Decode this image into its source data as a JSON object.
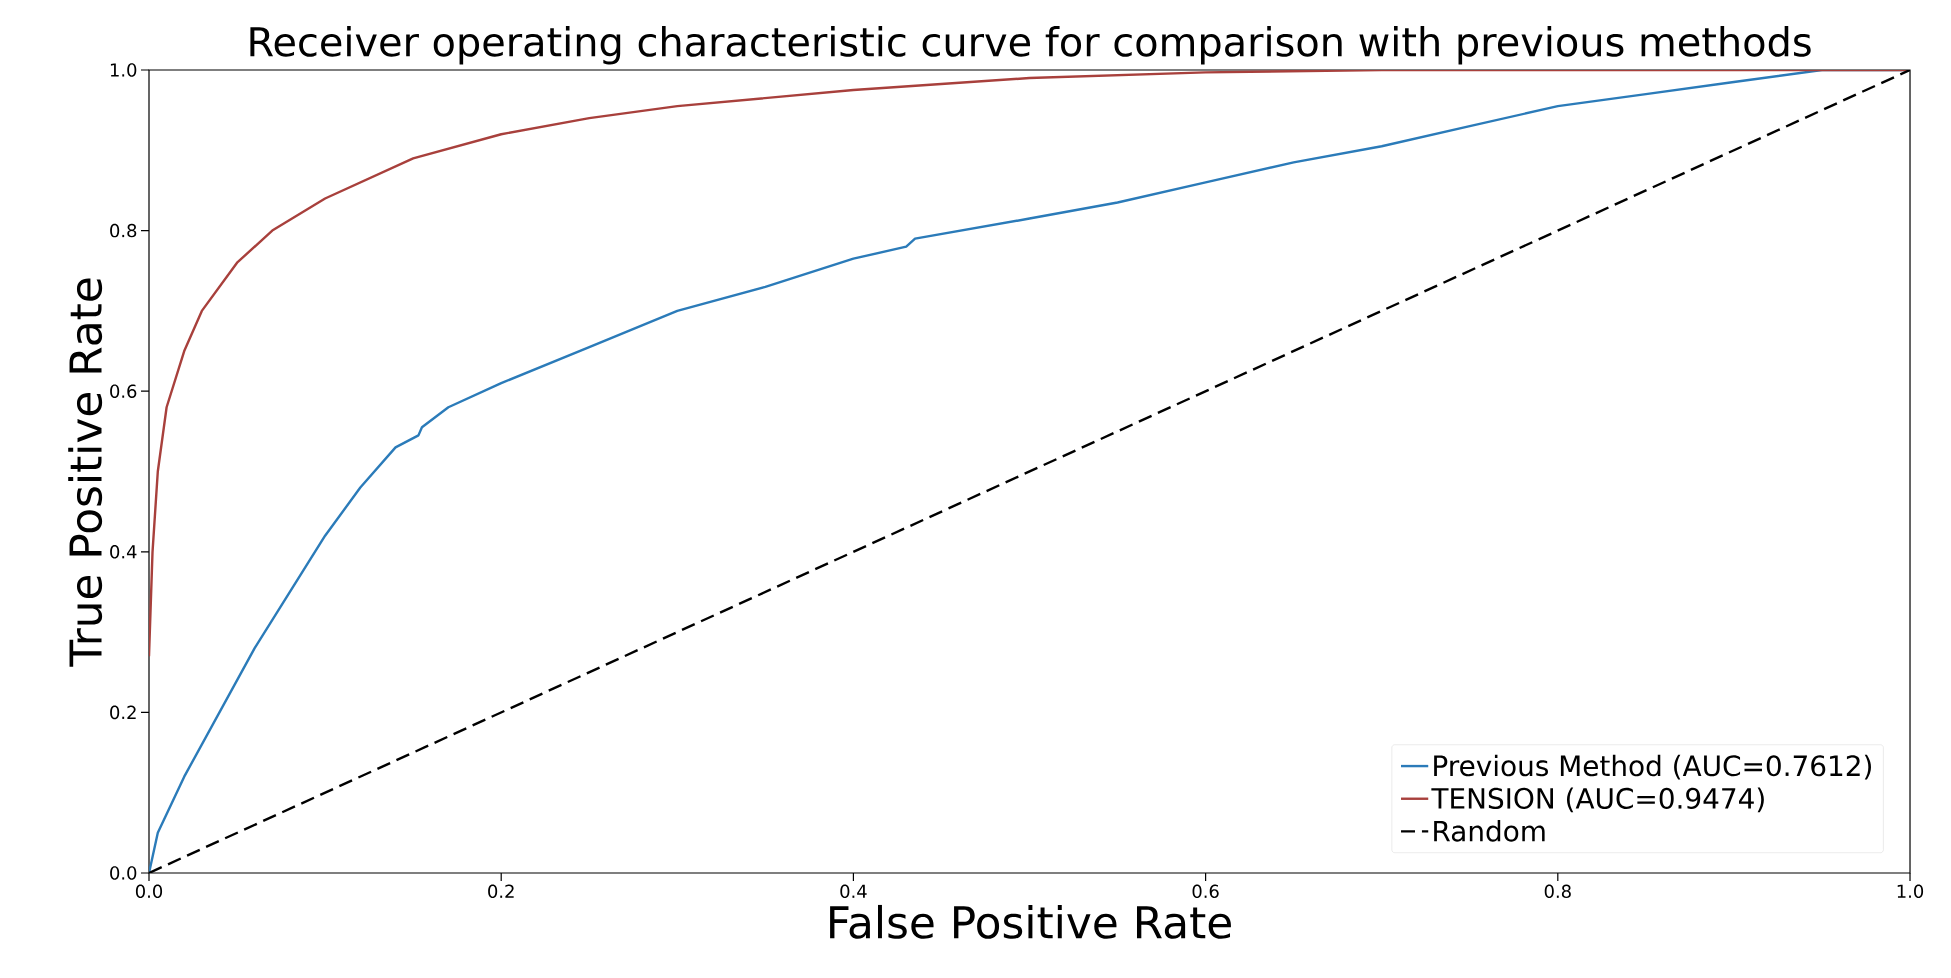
{
  "chart_data": {
    "type": "line",
    "title": "Receiver operating characteristic curve for comparison with previous methods",
    "xlabel": "False Positive Rate",
    "ylabel": "True Positive Rate",
    "xlim": [
      0.0,
      1.0
    ],
    "ylim": [
      0.0,
      1.0
    ],
    "xticks": [
      {
        "value": 0,
        "label": "0.0"
      },
      0.2,
      0.4,
      0.6,
      0.8,
      {
        "value": 1,
        "label": "1.0"
      }
    ],
    "yticks": [
      {
        "value": 0,
        "label": "0.0"
      },
      0.2,
      0.4,
      0.6,
      0.8,
      {
        "value": 1,
        "label": "1.0"
      }
    ],
    "grid": false,
    "legend": "bottom right",
    "marker": "none",
    "series": [
      {
        "name": "Previous Method (AUC=0.7612)",
        "color": "#2b7bb9",
        "line_style": "solid",
        "x": [
          0,
          0.005,
          0.02,
          0.04,
          0.06,
          0.08,
          0.1,
          0.12,
          0.14,
          0.153,
          0.155,
          0.17,
          0.2,
          0.25,
          0.3,
          0.35,
          0.4,
          0.43,
          0.435,
          0.5,
          0.55,
          0.6,
          0.65,
          0.7,
          0.75,
          0.8,
          0.85,
          0.9,
          0.95,
          1.0
        ],
        "values": [
          0,
          0.05,
          0.12,
          0.2,
          0.28,
          0.35,
          0.42,
          0.48,
          0.53,
          0.545,
          0.555,
          0.58,
          0.61,
          0.655,
          0.7,
          0.73,
          0.765,
          0.78,
          0.79,
          0.815,
          0.835,
          0.86,
          0.885,
          0.905,
          0.93,
          0.955,
          0.97,
          0.985,
          1.0,
          1.0
        ]
      },
      {
        "name": "TENSION (AUC=0.9474)",
        "color": "#a8403c",
        "line_style": "solid",
        "x": [
          0,
          0.002,
          0.005,
          0.01,
          0.02,
          0.03,
          0.05,
          0.07,
          0.1,
          0.15,
          0.2,
          0.25,
          0.3,
          0.4,
          0.5,
          0.6,
          0.7,
          1.0
        ],
        "values": [
          0.27,
          0.4,
          0.5,
          0.58,
          0.65,
          0.7,
          0.76,
          0.8,
          0.84,
          0.89,
          0.92,
          0.94,
          0.955,
          0.975,
          0.99,
          0.997,
          1.0,
          1.0
        ]
      },
      {
        "name": "Random",
        "color": "#000000",
        "line_style": "dashed",
        "x": [
          0,
          1
        ],
        "values": [
          0,
          1
        ]
      }
    ]
  }
}
